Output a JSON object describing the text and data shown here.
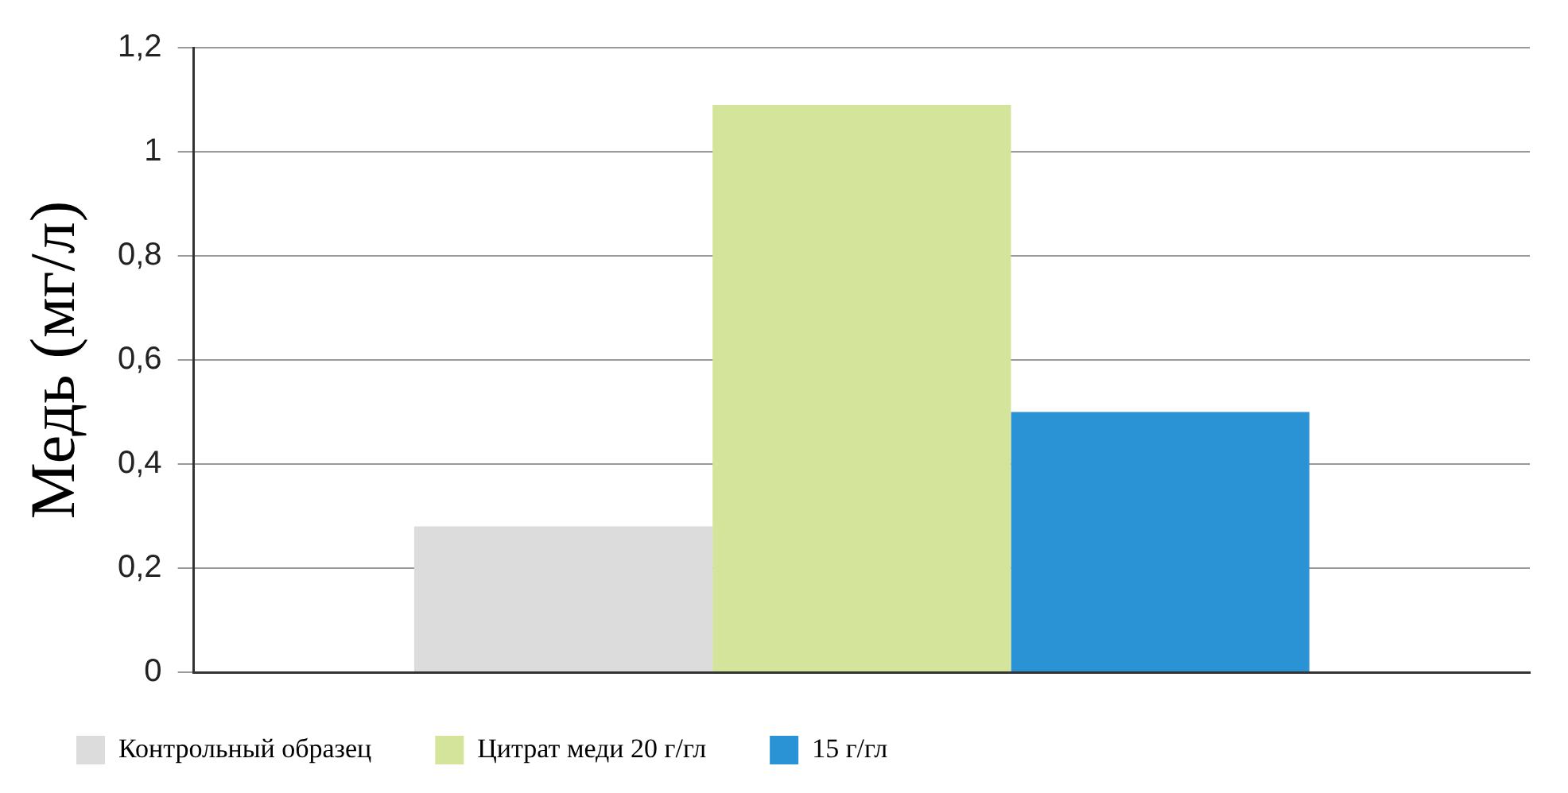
{
  "chart_data": {
    "type": "bar",
    "ylabel": "Медь (мг/л)",
    "categories": [
      null
    ],
    "series": [
      {
        "name": "Контрольный образец",
        "color": "#dcdcdc",
        "values": [
          0.28
        ]
      },
      {
        "name": "Цитрат меди 20 г/гл",
        "color": "#d4e49a",
        "values": [
          1.09
        ]
      },
      {
        "name": "15 г/гл",
        "color": "#2a93d5",
        "values": [
          0.5
        ]
      }
    ],
    "ylim": [
      0,
      1.2
    ],
    "yticks": [
      0,
      {
        "value": 0.2,
        "label": "0,2"
      },
      {
        "value": 0.4,
        "label": "0,4"
      },
      {
        "value": 0.6,
        "label": "0,6"
      },
      {
        "value": 0.8,
        "label": "0,8"
      },
      1,
      {
        "value": 1.2,
        "label": "1,2"
      }
    ],
    "grid": "y",
    "legend": "bottom",
    "tick_labels": "y"
  }
}
